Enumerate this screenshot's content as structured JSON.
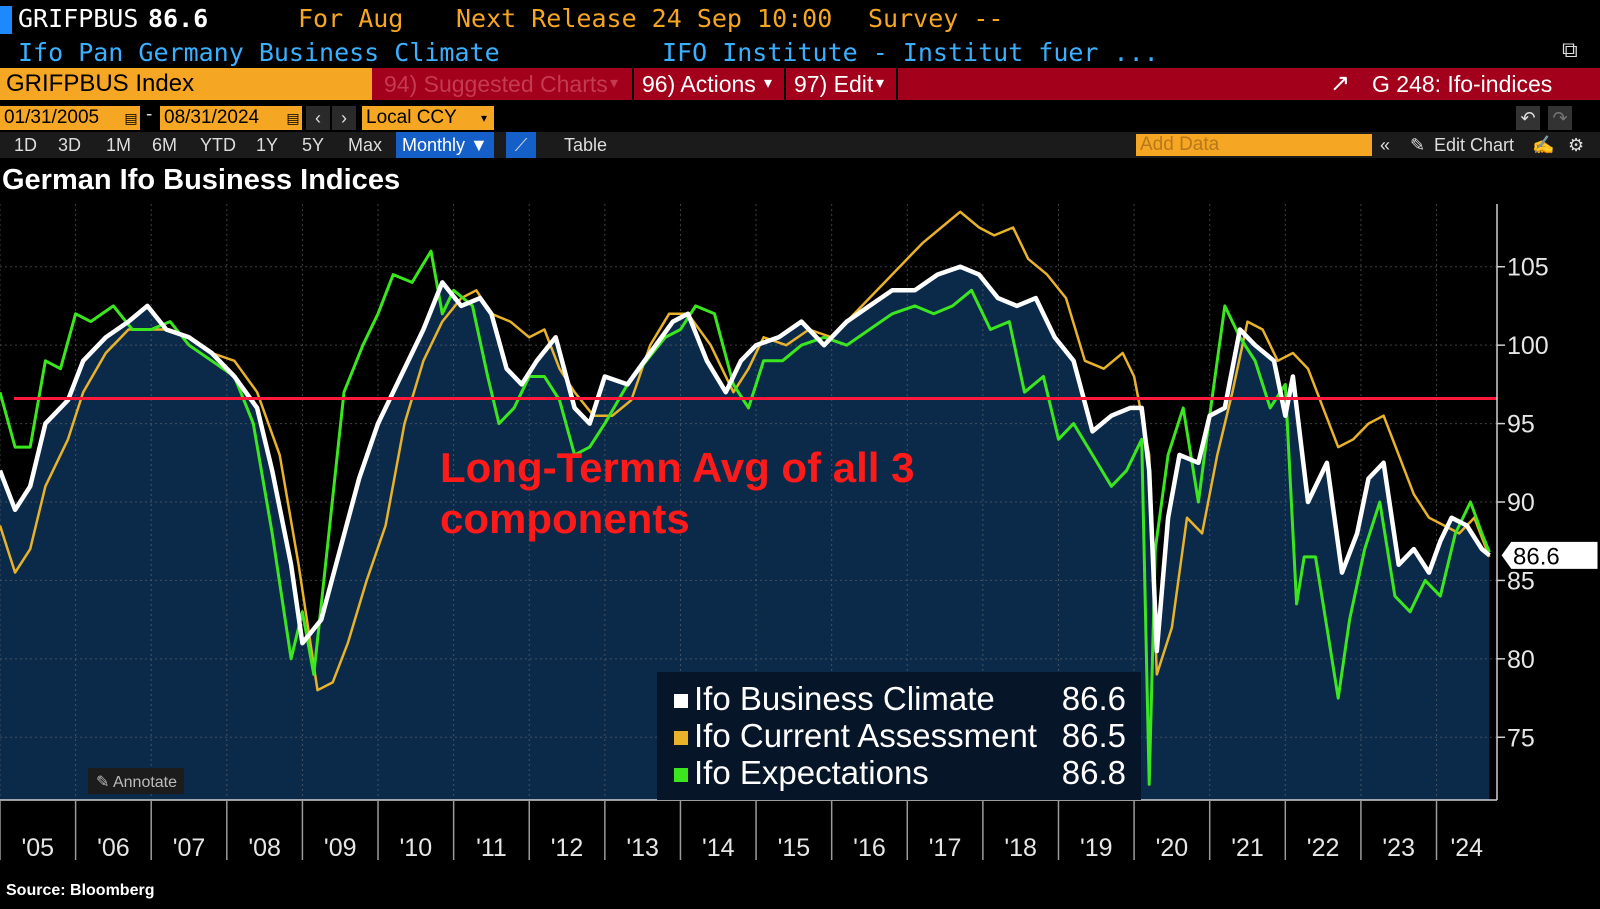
{
  "header": {
    "ticker": "GRIFPBUS",
    "last_value": "86.6",
    "period": "For Aug",
    "next_release": "Next Release 24 Sep 10:00",
    "survey": "Survey --",
    "description": "Ifo Pan Germany Business Climate",
    "source_org": "IFO Institute - Institut fuer ..."
  },
  "command_bar": {
    "security": "GRIFPBUS Index",
    "suggested": "94) Suggested Charts",
    "actions": "96) Actions",
    "edit": "97) Edit",
    "chart_name": "G 248: Ifo-indices"
  },
  "controls": {
    "start_date": "01/31/2005",
    "end_date": "08/31/2024",
    "currency": "Local CCY",
    "ranges": [
      "1D",
      "3D",
      "1M",
      "6M",
      "YTD",
      "1Y",
      "5Y",
      "Max"
    ],
    "frequency": "Monthly",
    "table_label": "Table",
    "add_data_placeholder": "Add Data",
    "edit_chart_label": "Edit Chart",
    "annotate_label": "Annotate"
  },
  "colors": {
    "climate": "#ffffff",
    "current": "#e8b22a",
    "expectations": "#3be61e",
    "average_line": "#ff1a3c",
    "annotation": "#ff1a1a",
    "area_fill": "#0b2a4a"
  },
  "chart_data": {
    "type": "line",
    "title": "German Ifo Business Indices",
    "x_ticks": [
      "'05",
      "'06",
      "'07",
      "'08",
      "'09",
      "'10",
      "'11",
      "'12",
      "'13",
      "'14",
      "'15",
      "'16",
      "'17",
      "'18",
      "'19",
      "'20",
      "'21",
      "'22",
      "'23",
      "'24"
    ],
    "y_ticks": [
      75,
      80,
      85,
      90,
      95,
      100,
      105
    ],
    "ylim": [
      71,
      109
    ],
    "xlim": [
      2005.0,
      2024.8
    ],
    "annotation": "Long-Termn Avg of all 3 components",
    "average_level": 96.6,
    "last_value_label": "86.6",
    "source": "Source: Bloomberg",
    "legend": [
      {
        "name": "Ifo Business Climate",
        "value": "86.6"
      },
      {
        "name": "Ifo Current Assessment",
        "value": "86.5"
      },
      {
        "name": "Ifo Expectations",
        "value": "86.8"
      }
    ],
    "series": [
      {
        "name": "Ifo Business Climate",
        "x": [
          2005.0,
          2005.2,
          2005.4,
          2005.6,
          2005.9,
          2006.1,
          2006.4,
          2006.7,
          2006.95,
          2007.2,
          2007.5,
          2007.8,
          2008.1,
          2008.4,
          2008.6,
          2008.85,
          2009.0,
          2009.25,
          2009.5,
          2009.75,
          2010.0,
          2010.3,
          2010.6,
          2010.85,
          2011.1,
          2011.35,
          2011.5,
          2011.7,
          2011.9,
          2012.1,
          2012.35,
          2012.6,
          2012.8,
          2013.0,
          2013.3,
          2013.6,
          2013.9,
          2014.1,
          2014.35,
          2014.6,
          2014.8,
          2015.0,
          2015.3,
          2015.6,
          2015.9,
          2016.2,
          2016.5,
          2016.8,
          2017.1,
          2017.4,
          2017.7,
          2017.95,
          2018.2,
          2018.45,
          2018.7,
          2018.95,
          2019.2,
          2019.45,
          2019.7,
          2019.95,
          2020.1,
          2020.2,
          2020.3,
          2020.45,
          2020.6,
          2020.85,
          2021.0,
          2021.2,
          2021.4,
          2021.6,
          2021.85,
          2022.0,
          2022.1,
          2022.3,
          2022.55,
          2022.75,
          2022.95,
          2023.1,
          2023.3,
          2023.5,
          2023.7,
          2023.9,
          2024.05,
          2024.2,
          2024.4,
          2024.6,
          2024.7
        ],
        "values": [
          92,
          89.5,
          91,
          95,
          96.5,
          99,
          100.5,
          101.5,
          102.5,
          101,
          100.5,
          99.5,
          98,
          96,
          92,
          86,
          81,
          82.5,
          87,
          91.5,
          95,
          98,
          101,
          104,
          102.5,
          103,
          102,
          98.5,
          97.5,
          99,
          100.5,
          96,
          95,
          98,
          97.5,
          99.5,
          101.5,
          102,
          99,
          97,
          99,
          100,
          100.5,
          101.5,
          100,
          101.5,
          102.5,
          103.5,
          103.5,
          104.5,
          105,
          104.5,
          103,
          102.5,
          103,
          100.5,
          99,
          94.5,
          95.5,
          96,
          96,
          92,
          80.5,
          89,
          93,
          92.5,
          95.5,
          96,
          101,
          100,
          99,
          95.5,
          98,
          90,
          92.5,
          85.5,
          88,
          91.5,
          92.5,
          86,
          87,
          85.5,
          87.5,
          89,
          88.5,
          87,
          86.6
        ]
      },
      {
        "name": "Ifo Current Assessment",
        "x": [
          2005.0,
          2005.2,
          2005.4,
          2005.6,
          2005.9,
          2006.1,
          2006.4,
          2006.7,
          2006.95,
          2007.2,
          2007.5,
          2007.8,
          2008.1,
          2008.4,
          2008.7,
          2008.95,
          2009.2,
          2009.4,
          2009.6,
          2009.85,
          2010.1,
          2010.35,
          2010.6,
          2010.85,
          2011.1,
          2011.3,
          2011.5,
          2011.75,
          2012.0,
          2012.2,
          2012.4,
          2012.6,
          2012.85,
          2013.1,
          2013.35,
          2013.6,
          2013.85,
          2014.1,
          2014.4,
          2014.7,
          2014.9,
          2015.1,
          2015.4,
          2015.7,
          2016.0,
          2016.3,
          2016.6,
          2016.9,
          2017.2,
          2017.45,
          2017.7,
          2017.95,
          2018.15,
          2018.4,
          2018.6,
          2018.85,
          2019.1,
          2019.35,
          2019.6,
          2019.85,
          2020.0,
          2020.2,
          2020.3,
          2020.5,
          2020.7,
          2020.9,
          2021.1,
          2021.3,
          2021.5,
          2021.7,
          2021.9,
          2022.1,
          2022.3,
          2022.5,
          2022.7,
          2022.9,
          2023.1,
          2023.3,
          2023.5,
          2023.7,
          2023.9,
          2024.1,
          2024.3,
          2024.5,
          2024.7
        ],
        "values": [
          88.5,
          85.5,
          87,
          91,
          94,
          97,
          99.5,
          101,
          101,
          101,
          100.5,
          99.5,
          99,
          97,
          93,
          86,
          78,
          78.5,
          81,
          85,
          88.5,
          95,
          99,
          101.5,
          103,
          103.5,
          102,
          101.5,
          100.5,
          101,
          98.5,
          97,
          95.5,
          95.5,
          96.5,
          100,
          102,
          102,
          100,
          97,
          98.5,
          100.5,
          100,
          101,
          100.5,
          102,
          103.5,
          105,
          106.5,
          107.5,
          108.5,
          107.5,
          107,
          107.5,
          105.5,
          104.5,
          103,
          99,
          98.5,
          99.5,
          98,
          93,
          79,
          82,
          89,
          88,
          93,
          97,
          101.5,
          101,
          99,
          99.5,
          98.5,
          96,
          93.5,
          94,
          95,
          95.5,
          93,
          90.5,
          89,
          88.5,
          88,
          89,
          86.5
        ]
      },
      {
        "name": "Ifo Expectations",
        "x": [
          2005.0,
          2005.2,
          2005.4,
          2005.6,
          2005.8,
          2006.0,
          2006.2,
          2006.5,
          2006.75,
          2007.0,
          2007.25,
          2007.5,
          2007.8,
          2008.1,
          2008.35,
          2008.6,
          2008.85,
          2009.0,
          2009.15,
          2009.35,
          2009.55,
          2009.8,
          2010.0,
          2010.2,
          2010.45,
          2010.7,
          2010.85,
          2011.0,
          2011.25,
          2011.45,
          2011.6,
          2011.8,
          2012.0,
          2012.2,
          2012.4,
          2012.6,
          2012.8,
          2013.0,
          2013.3,
          2013.55,
          2013.8,
          2014.0,
          2014.2,
          2014.45,
          2014.7,
          2014.9,
          2015.1,
          2015.35,
          2015.6,
          2015.9,
          2016.2,
          2016.5,
          2016.8,
          2017.1,
          2017.35,
          2017.6,
          2017.85,
          2018.1,
          2018.35,
          2018.55,
          2018.8,
          2019.0,
          2019.2,
          2019.45,
          2019.7,
          2019.9,
          2020.1,
          2020.2,
          2020.28,
          2020.45,
          2020.65,
          2020.85,
          2021.0,
          2021.2,
          2021.4,
          2021.6,
          2021.8,
          2022.0,
          2022.15,
          2022.25,
          2022.4,
          2022.55,
          2022.7,
          2022.85,
          2023.05,
          2023.25,
          2023.45,
          2023.65,
          2023.85,
          2024.05,
          2024.25,
          2024.45,
          2024.6,
          2024.7
        ],
        "values": [
          97,
          93.5,
          93.5,
          99,
          98.5,
          102,
          101.5,
          102.5,
          101,
          101,
          101.5,
          100,
          99,
          98,
          95,
          88,
          80,
          83,
          79,
          88,
          97,
          100,
          102,
          104.5,
          104,
          106,
          102,
          103.5,
          102.5,
          98,
          95,
          96,
          98,
          98,
          96.5,
          93,
          93.5,
          95,
          97.5,
          99,
          100.5,
          101,
          102.5,
          102,
          97.5,
          96,
          99,
          99,
          100,
          100.5,
          100,
          101,
          102,
          102.5,
          102,
          102.5,
          103.5,
          101,
          101.5,
          97,
          98,
          94,
          95,
          93,
          91,
          92,
          94,
          72,
          87,
          93,
          96,
          90,
          95.5,
          102.5,
          100.5,
          99,
          96,
          97.5,
          83.5,
          86.5,
          86.5,
          82,
          77.5,
          82.5,
          87,
          90,
          84,
          83,
          85,
          84,
          88,
          90,
          88,
          86.8
        ]
      }
    ]
  }
}
